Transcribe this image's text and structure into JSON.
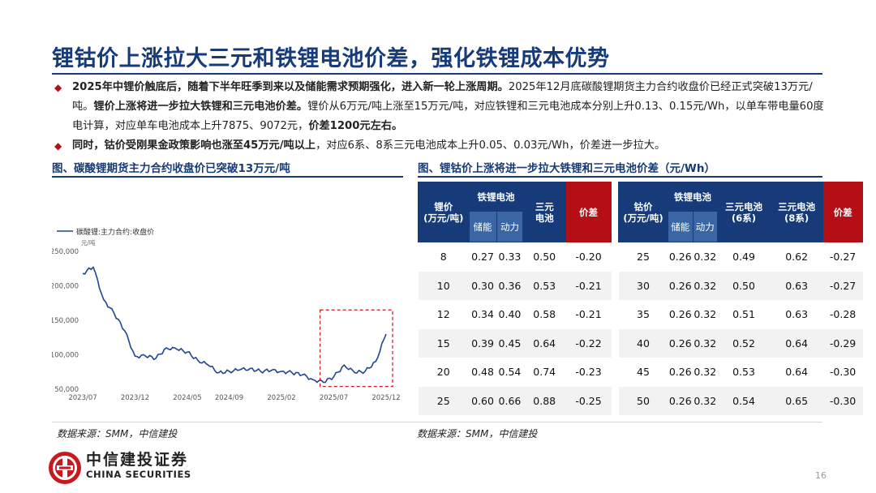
{
  "title": "锂钴价上涨拉大三元和铁锂电池价差，强化铁锂成本优势",
  "bullets": [
    {
      "b1": "2025年中锂价触底后，随着下半年旺季到来以及储能需求预期强化，进入新一轮上涨周期。",
      "t1": "2025年12月底碳酸锂期货主力合约收盘价已经正式突破13万元/吨。",
      "b2": "锂价上涨将进一步拉大铁锂和三元电池价差。",
      "t2": "锂价从6万元/吨上涨至15万元/吨，对应铁锂和三元电池成本分别上升0.13、0.15元/Wh，以单车带电量60度电计算，对应单车电池成本上升7875、9072元，",
      "b3": "价差1200元左右。"
    },
    {
      "b1": "同时，钴价受刚果金政策影响也涨至45万元/吨以上",
      "t1": "，对应6系、8系三元电池成本上升0.05、0.03元/Wh，价差进一步拉大。"
    }
  ],
  "left_caption": "图、碳酸锂期货主力合约收盘价已突破13万元/吨",
  "right_caption": "图、锂钴价上涨将进一步拉大铁锂和三元电池价差（元/Wh）",
  "source_left": "数据来源：SMM，中信建投",
  "source_right": "数据来源：SMM，中信建投",
  "page_number": "16",
  "logo": {
    "cn": "中信建投证券",
    "en": "CHINA SECURITIES"
  },
  "colors": {
    "navy": "#163b78",
    "red": "#b40f16",
    "sub_header": "#3a67a4",
    "line": "#1f4594"
  },
  "table_left": {
    "headers": {
      "col1": "锂价\n(万元/吨)",
      "group": "铁锂电池",
      "sub1": "储能",
      "sub2": "动力",
      "col3": "三元\n电池",
      "col4": "价差"
    },
    "rows": [
      [
        "8",
        "0.27",
        "0.33",
        "0.50",
        "-0.20"
      ],
      [
        "10",
        "0.30",
        "0.36",
        "0.53",
        "-0.21"
      ],
      [
        "12",
        "0.34",
        "0.40",
        "0.58",
        "-0.21"
      ],
      [
        "15",
        "0.39",
        "0.45",
        "0.64",
        "-0.22"
      ],
      [
        "20",
        "0.48",
        "0.54",
        "0.74",
        "-0.23"
      ],
      [
        "25",
        "0.60",
        "0.66",
        "0.88",
        "-0.25"
      ]
    ]
  },
  "table_right": {
    "headers": {
      "col1": "钴价\n(万元/吨)",
      "group": "铁锂电池",
      "sub1": "储能",
      "sub2": "动力",
      "col3": "三元电池\n(6系)",
      "col4": "三元电池\n(8系)",
      "col5": "价差"
    },
    "rows": [
      [
        "25",
        "0.26",
        "0.32",
        "0.49",
        "0.62",
        "-0.27"
      ],
      [
        "30",
        "0.26",
        "0.32",
        "0.50",
        "0.63",
        "-0.27"
      ],
      [
        "35",
        "0.26",
        "0.32",
        "0.51",
        "0.63",
        "-0.28"
      ],
      [
        "40",
        "0.26",
        "0.32",
        "0.52",
        "0.64",
        "-0.29"
      ],
      [
        "45",
        "0.26",
        "0.32",
        "0.53",
        "0.64",
        "-0.30"
      ],
      [
        "50",
        "0.26",
        "0.32",
        "0.54",
        "0.65",
        "-0.30"
      ]
    ]
  },
  "chart_data": {
    "type": "line",
    "legend": "碳酸锂:主力合约:收盘价",
    "yunit": "元/吨",
    "ylim": [
      50000,
      250000
    ],
    "yticks": [
      "250,000",
      "200,000",
      "150,000",
      "100,000",
      "50,000"
    ],
    "xticks": [
      "2023/07",
      "2023/12",
      "2024/05",
      "2024/09",
      "2025/02",
      "2025/07",
      "2025/12"
    ],
    "grid": false,
    "highlight": "dashed red box over 2025/06 – 2025/12",
    "series": [
      {
        "name": "碳酸锂:主力合约:收盘价",
        "points": [
          [
            "2023/07",
            218000
          ],
          [
            "2023/08",
            227000
          ],
          [
            "2023/09",
            180000
          ],
          [
            "2023/10",
            160000
          ],
          [
            "2023/11",
            135000
          ],
          [
            "2023/12",
            98000
          ],
          [
            "2024/01",
            98000
          ],
          [
            "2024/02",
            95000
          ],
          [
            "2024/03",
            110000
          ],
          [
            "2024/04",
            108000
          ],
          [
            "2024/05",
            104000
          ],
          [
            "2024/06",
            92000
          ],
          [
            "2024/07",
            85000
          ],
          [
            "2024/08",
            74000
          ],
          [
            "2024/09",
            76000
          ],
          [
            "2024/10",
            78000
          ],
          [
            "2024/11",
            80000
          ],
          [
            "2024/12",
            76000
          ],
          [
            "2025/01",
            77000
          ],
          [
            "2025/02",
            76000
          ],
          [
            "2025/03",
            74000
          ],
          [
            "2025/04",
            71000
          ],
          [
            "2025/05",
            64000
          ],
          [
            "2025/06",
            60000
          ],
          [
            "2025/07",
            68000
          ],
          [
            "2025/08",
            85000
          ],
          [
            "2025/09",
            74000
          ],
          [
            "2025/10",
            76000
          ],
          [
            "2025/11",
            90000
          ],
          [
            "2025/12",
            130000
          ]
        ]
      }
    ]
  }
}
